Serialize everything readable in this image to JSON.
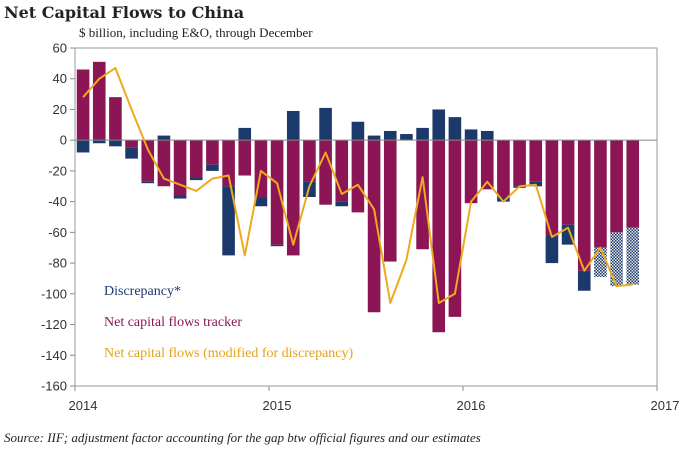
{
  "title": "Net Capital Flows to China",
  "subtitle": "$ billion,  including E&O, through December",
  "source": "Source: IIF; adjustment factor accounting for the gap btw official figures and our estimates",
  "colors": {
    "discrepancy": "#1b3a6b",
    "tracker": "#8c1655",
    "modified": "#f0a81e",
    "axis": "#555555"
  },
  "chart_data": {
    "type": "bar",
    "title": "Net Capital Flows to China",
    "ylabel": "$ billion",
    "ylim": [
      -160,
      60
    ],
    "yticks": [
      60,
      40,
      20,
      0,
      -20,
      -40,
      -60,
      -80,
      -100,
      -120,
      -140,
      -160
    ],
    "xrange": [
      2014,
      2017
    ],
    "xticks": [
      "2014",
      "2015",
      "2016",
      "2017"
    ],
    "grid": false,
    "legend_position": "bottom-left",
    "categories": [
      "2014-01",
      "2014-02",
      "2014-03",
      "2014-04",
      "2014-05",
      "2014-06",
      "2014-07",
      "2014-08",
      "2014-09",
      "2014-10",
      "2014-11",
      "2014-12",
      "2015-01",
      "2015-02",
      "2015-03",
      "2015-04",
      "2015-05",
      "2015-06",
      "2015-07",
      "2015-08",
      "2015-09",
      "2015-10",
      "2015-11",
      "2015-12",
      "2016-01",
      "2016-02",
      "2016-03",
      "2016-04",
      "2016-05",
      "2016-06",
      "2016-07",
      "2016-08",
      "2016-09",
      "2016-10",
      "2016-11",
      "2016-12"
    ],
    "series": [
      {
        "name": "Net capital flows tracker",
        "kind": "bar",
        "values": [
          46,
          51,
          28,
          -5,
          -27,
          -30,
          -36,
          -24,
          -16,
          -30,
          -23,
          -37,
          -68,
          -75,
          -27,
          -42,
          -40,
          -47,
          -112,
          -79,
          0,
          -71,
          -125,
          -115,
          -41,
          -32,
          -37,
          -30,
          -27,
          -62,
          -55,
          -85,
          -70,
          -60,
          -57,
          0
        ]
      },
      {
        "name": "Discrepancy*",
        "kind": "bar",
        "values": [
          -8,
          -2,
          -4,
          -7,
          -1,
          3,
          -2,
          -2,
          -4,
          -45,
          8,
          -6,
          -1,
          19,
          -10,
          21,
          -3,
          12,
          3,
          6,
          4,
          8,
          20,
          15,
          7,
          6,
          -3,
          -1,
          -3,
          -18,
          -13,
          -13,
          -19,
          -35,
          -37,
          0
        ]
      },
      {
        "name": "Net capital flows (modified for discrepancy)",
        "kind": "line",
        "values": [
          28,
          40,
          47,
          20,
          -6,
          -25,
          -29,
          -33,
          -25,
          -23,
          -75,
          -20,
          -28,
          -68,
          -30,
          -8,
          -35,
          -29,
          -45,
          -106,
          -78,
          -24,
          -106,
          -100,
          -40,
          -27,
          -40,
          -30,
          -29,
          -63,
          -57,
          -85,
          -70,
          -95,
          -94,
          null
        ]
      }
    ],
    "hatched_last_bars": 3
  }
}
